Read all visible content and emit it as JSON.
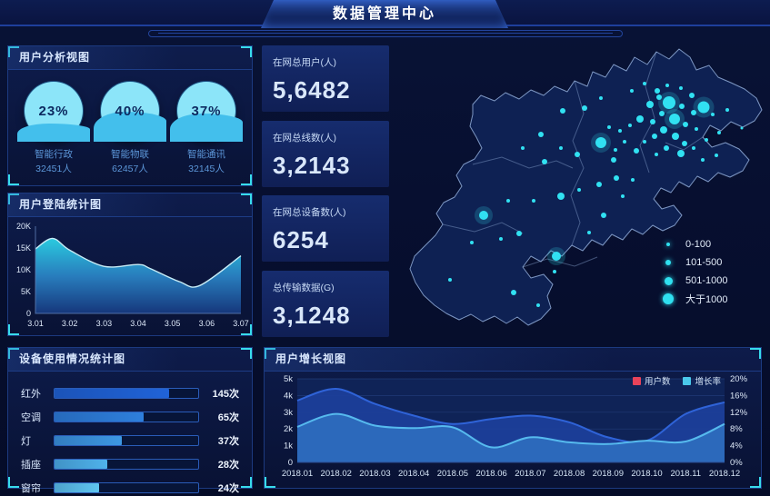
{
  "header": {
    "title": "数据管理中心"
  },
  "panels": {
    "user_analysis": {
      "title": "用户分析视图",
      "items": [
        {
          "percent": "23%",
          "label": "智能行政",
          "count": "32451人",
          "fill_pct": 32
        },
        {
          "percent": "40%",
          "label": "智能物联",
          "count": "62457人",
          "fill_pct": 52
        },
        {
          "percent": "37%",
          "label": "智能通讯",
          "count": "32145人",
          "fill_pct": 49
        }
      ]
    },
    "login_stats": {
      "title": "用户登陆统计图"
    },
    "device_usage": {
      "title": "设备使用情况统计图",
      "bar_colors": [
        "#2063d8",
        "#2e7fdc",
        "#3d97e2",
        "#4fb2ea",
        "#5fc5f0"
      ]
    },
    "user_growth": {
      "title": "用户增长视图",
      "legend": [
        {
          "label": "用户数",
          "color": "#e8435a"
        },
        {
          "label": "增长率",
          "color": "#4ac8ea"
        }
      ]
    }
  },
  "stats": [
    {
      "label": "在网总用户(人)",
      "value": "5,6482"
    },
    {
      "label": "在网总线数(人)",
      "value": "3,2143"
    },
    {
      "label": "在网总设备数(人)",
      "value": "6254"
    },
    {
      "label": "总传输数据(G)",
      "value": "3,1248"
    }
  ],
  "map": {
    "dot_color": "#31e1f2",
    "legend": [
      {
        "label": "0-100",
        "size": 4
      },
      {
        "label": "101-500",
        "size": 6
      },
      {
        "label": "501-1000",
        "size": 9
      },
      {
        "label": "大于1000",
        "size": 12
      }
    ],
    "dots": [
      [
        304,
        68,
        7
      ],
      [
        342,
        73,
        6.5
      ],
      [
        310,
        86,
        6
      ],
      [
        229,
        112,
        6
      ],
      [
        100,
        192,
        5
      ],
      [
        180,
        237,
        5
      ],
      [
        263,
        55,
        2
      ],
      [
        277,
        47,
        2
      ],
      [
        291,
        55,
        3
      ],
      [
        302,
        49,
        2
      ],
      [
        317,
        52,
        2
      ],
      [
        329,
        60,
        3
      ],
      [
        293,
        62,
        3
      ],
      [
        283,
        70,
        4
      ],
      [
        318,
        72,
        3
      ],
      [
        331,
        79,
        3
      ],
      [
        352,
        81,
        2
      ],
      [
        296,
        80,
        3
      ],
      [
        286,
        89,
        3
      ],
      [
        272,
        86,
        4
      ],
      [
        261,
        93,
        2
      ],
      [
        322,
        92,
        3
      ],
      [
        334,
        97,
        2
      ],
      [
        298,
        98,
        4
      ],
      [
        288,
        105,
        3
      ],
      [
        277,
        111,
        2
      ],
      [
        311,
        105,
        4
      ],
      [
        321,
        113,
        3
      ],
      [
        301,
        118,
        3
      ],
      [
        290,
        125,
        2
      ],
      [
        317,
        124,
        4
      ],
      [
        331,
        118,
        2
      ],
      [
        345,
        109,
        2
      ],
      [
        268,
        121,
        3
      ],
      [
        255,
        111,
        2
      ],
      [
        250,
        99,
        2
      ],
      [
        368,
        76,
        2
      ],
      [
        384,
        96,
        1.5
      ],
      [
        359,
        101,
        2
      ],
      [
        356,
        126,
        2
      ],
      [
        341,
        131,
        2
      ],
      [
        238,
        95,
        2
      ],
      [
        245,
        120,
        2
      ],
      [
        187,
        77,
        3
      ],
      [
        211,
        74,
        3
      ],
      [
        229,
        63,
        2
      ],
      [
        163,
        103,
        3
      ],
      [
        143,
        118,
        2
      ],
      [
        167,
        133,
        3
      ],
      [
        185,
        118,
        2
      ],
      [
        203,
        125,
        3
      ],
      [
        243,
        131,
        3
      ],
      [
        246,
        151,
        3
      ],
      [
        227,
        158,
        3
      ],
      [
        264,
        153,
        2
      ],
      [
        185,
        171,
        4
      ],
      [
        155,
        176,
        2
      ],
      [
        127,
        176,
        2
      ],
      [
        139,
        212,
        3
      ],
      [
        119,
        218,
        2
      ],
      [
        87,
        222,
        2
      ],
      [
        178,
        254,
        2
      ],
      [
        63,
        263,
        2
      ],
      [
        133,
        277,
        3
      ],
      [
        232,
        192,
        3
      ],
      [
        205,
        164,
        2
      ],
      [
        216,
        211,
        2
      ],
      [
        253,
        171,
        2
      ],
      [
        160,
        291,
        2
      ]
    ]
  },
  "chart_data": [
    {
      "id": "login",
      "type": "area",
      "title": "用户登陆统计图",
      "x": [
        "3.01",
        "3.02",
        "3.03",
        "3.04",
        "3.05",
        "3.06",
        "3.07"
      ],
      "xlim": [
        3.01,
        3.07
      ],
      "points": [
        {
          "x": 3.01,
          "y": 14800
        },
        {
          "x": 3.015,
          "y": 17200
        },
        {
          "x": 3.02,
          "y": 14500
        },
        {
          "x": 3.03,
          "y": 10800
        },
        {
          "x": 3.04,
          "y": 11200
        },
        {
          "x": 3.0435,
          "y": 10300
        },
        {
          "x": 3.052,
          "y": 7300
        },
        {
          "x": 3.058,
          "y": 6400
        },
        {
          "x": 3.07,
          "y": 13200
        }
      ],
      "ylim": [
        0,
        20000
      ],
      "yticks": [
        "0",
        "5K",
        "10K",
        "15K",
        "20K"
      ],
      "grid": false
    },
    {
      "id": "device",
      "type": "bar",
      "title": "设备使用情况统计图",
      "categories": [
        "红外",
        "空调",
        "灯",
        "插座",
        "窗帘"
      ],
      "values": [
        145,
        65,
        37,
        28,
        24
      ],
      "value_labels": [
        "145次",
        "65次",
        "37次",
        "28次",
        "24次"
      ],
      "fill_pct": [
        80,
        62,
        47,
        37,
        31
      ]
    },
    {
      "id": "growth",
      "type": "area",
      "title": "用户增长视图",
      "categories": [
        "2018.01",
        "2018.02",
        "2018.03",
        "2018.04",
        "2018.05",
        "2018.06",
        "2018.07",
        "2018.08",
        "2018.09",
        "2018.10",
        "2018.11",
        "2018.12"
      ],
      "series": [
        {
          "name": "用户数",
          "axis": "left",
          "values": [
            3700,
            4400,
            3500,
            2800,
            2300,
            2600,
            2800,
            2400,
            1500,
            1300,
            2900,
            3600
          ],
          "line_color": "#2f63d8",
          "fill_color": "#1c3f9a"
        },
        {
          "name": "增长率",
          "axis": "right",
          "values": [
            8.5,
            11.6,
            8.8,
            8.2,
            8.4,
            3.6,
            6.0,
            4.8,
            4.4,
            5.2,
            5.0,
            9.2
          ],
          "line_color": "#56baee",
          "fill_color": "#2d6cbd"
        }
      ],
      "ylim_left": [
        0,
        5000
      ],
      "yticks_left": [
        "0",
        "1k",
        "2k",
        "3k",
        "4k",
        "5k"
      ],
      "ylim_right": [
        0,
        20
      ],
      "yticks_right": [
        "0%",
        "4%",
        "8%",
        "12%",
        "16%",
        "20%"
      ],
      "grid": true,
      "legend_position": "top-right"
    },
    {
      "id": "gauges",
      "type": "liquid-gauge",
      "categories": [
        "智能行政",
        "智能物联",
        "智能通讯"
      ],
      "values": [
        23,
        40,
        37
      ],
      "counts": [
        32451,
        62457,
        32145
      ]
    }
  ]
}
